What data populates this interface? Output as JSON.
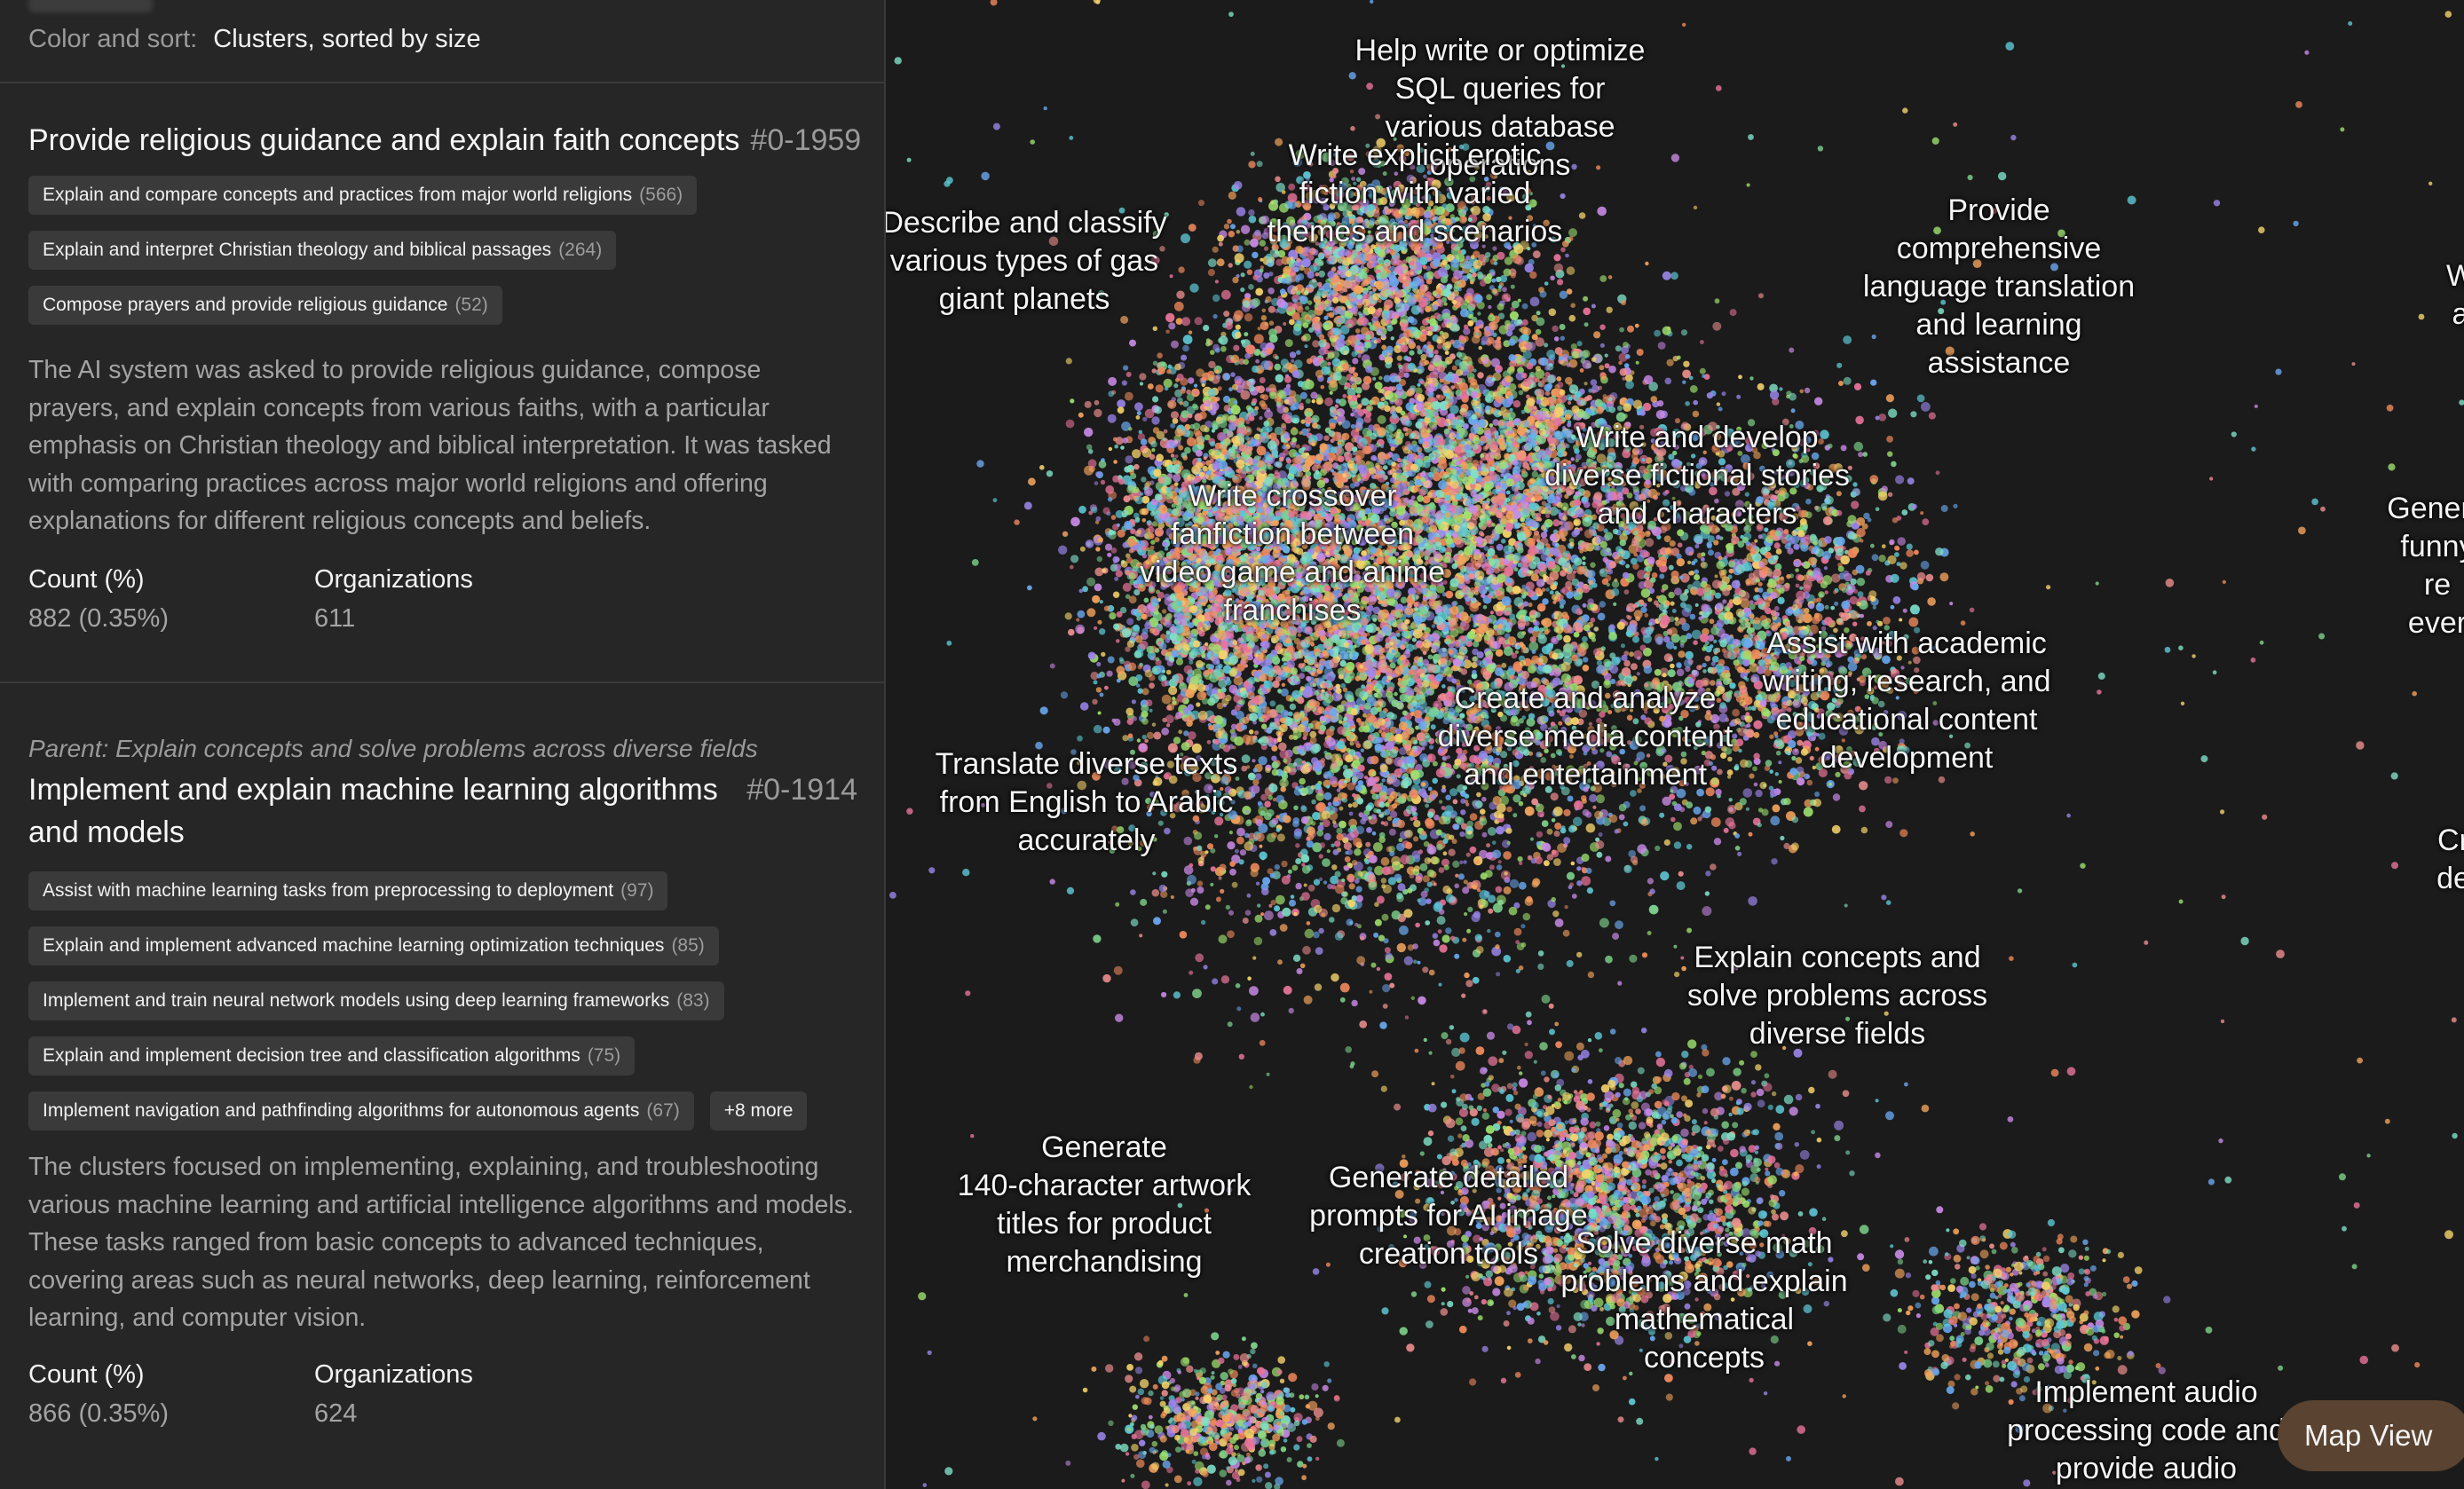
{
  "header": {
    "color_sort_label": "Color and sort:",
    "color_sort_value": "Clusters, sorted by size"
  },
  "clusters": [
    {
      "parent": "",
      "title": "Provide religious guidance and explain faith concepts",
      "id": "#0-1959",
      "subclusters": [
        {
          "label": "Explain and compare concepts and practices from major world religions",
          "count": "(566)"
        },
        {
          "label": "Explain and interpret Christian theology and biblical passages",
          "count": "(264)"
        },
        {
          "label": "Compose prayers and provide religious guidance",
          "count": "(52)"
        }
      ],
      "more": "",
      "description": "The AI system was asked to provide religious guidance, compose prayers, and explain concepts from various faiths, with a particular emphasis on Christian theology and biblical interpretation. It was tasked with comparing practices across major world religions and offering explanations for different religious concepts and beliefs.",
      "count_label": "Count (%)",
      "count_value": "882 (0.35%)",
      "orgs_label": "Organizations",
      "orgs_value": "611"
    },
    {
      "parent": "Parent: Explain concepts and solve problems across diverse fields",
      "title": "Implement and explain machine learning algorithms and models",
      "id": "#0-1914",
      "subclusters": [
        {
          "label": "Assist with machine learning tasks from preprocessing to deployment",
          "count": "(97)"
        },
        {
          "label": "Explain and implement advanced machine learning optimization techniques",
          "count": "(85)"
        },
        {
          "label": "Implement and train neural network models using deep learning frameworks",
          "count": "(83)"
        },
        {
          "label": "Explain and implement decision tree and classification algorithms",
          "count": "(75)"
        },
        {
          "label": "Implement navigation and pathfinding algorithms for autonomous agents",
          "count": "(67)"
        }
      ],
      "more": "+8 more",
      "description": "The clusters focused on implementing, explaining, and troubleshooting various machine learning and artificial intelligence algorithms and models. These tasks ranged from basic concepts to advanced techniques, covering areas such as neural networks, deep learning, reinforcement learning, and computer vision.",
      "count_label": "Count (%)",
      "count_value": "866 (0.35%)",
      "orgs_label": "Organizations",
      "orgs_value": "624"
    }
  ],
  "map": {
    "labels": [
      {
        "text": "Help write or optimize\nSQL queries for\nvarious database\noperations"
      },
      {
        "text": "Write explicit erotic\nfiction with varied\nthemes and scenarios"
      },
      {
        "text": "Describe and classify\nvarious types of gas\ngiant planets"
      },
      {
        "text": "Provide\ncomprehensive\nlanguage translation\nand learning\nassistance"
      },
      {
        "text": "Write and develop\ndiverse fictional stories\nand characters"
      },
      {
        "text": "Write crossover\nfanfiction between\nvideo game and anime\nfranchises"
      },
      {
        "text": "Assist with academic\nwriting, research, and\neducational content\ndevelopment"
      },
      {
        "text": "Create and analyze\ndiverse media content\nand entertainment"
      },
      {
        "text": "Translate diverse texts\nfrom English to Arabic\naccurately"
      },
      {
        "text": "Explain concepts and\nsolve problems across\ndiverse fields"
      },
      {
        "text": "Generate\n140-character artwork\ntitles for product\nmerchandising"
      },
      {
        "text": "Generate detailed\nprompts for AI image\ncreation tools"
      },
      {
        "text": "Solve diverse math\nproblems and explain\nmathematical\nconcepts"
      },
      {
        "text": "Implement audio\nprocessing code and\nprovide audio"
      },
      {
        "text": "Genera\nfunny re\never"
      },
      {
        "text": "W\na"
      },
      {
        "text": "Cr\nde"
      }
    ],
    "view_button": "Map View",
    "palette": [
      "#e8749a",
      "#f3a35c",
      "#f5d36b",
      "#7ed38b",
      "#5ec8d6",
      "#6aa8ef",
      "#9b86ea",
      "#c98ae6",
      "#ee8f8f",
      "#9ee06e",
      "#f08a5c",
      "#7fe0c8"
    ]
  }
}
